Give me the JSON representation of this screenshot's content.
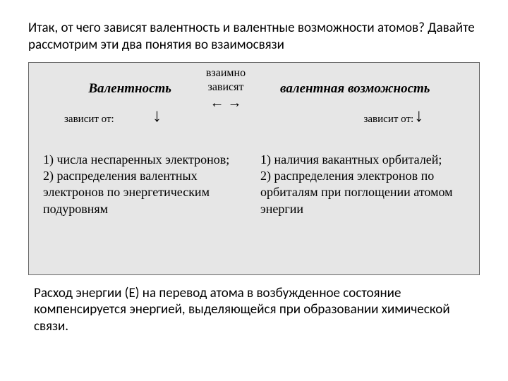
{
  "intro": "Итак, от чего зависят валентность и валентные возможности атомов? Давайте рассмотрим эти два понятия во взаимосвязи",
  "diagram": {
    "background_color": "#e6e6e6",
    "border_color": "#666666",
    "left_concept": "Валентность",
    "right_concept": "валентная возможность",
    "center_label_line1": "взаимно",
    "center_label_line2": "зависят",
    "center_arrows": "←        →",
    "depend_left": "зависит от:",
    "depend_right": "зависит от:",
    "down_arrow": "↓",
    "left_list_1": "1) числа неспаренных электронов;",
    "left_list_2": "2) распределения валентных электронов по энергетическим подуровням",
    "right_list_1": "1) наличия вакантных орбиталей;",
    "right_list_2": "2) распределения электронов по орбиталям при поглощении атомом энергии"
  },
  "outro": "Расход энергии (Е) на перевод атома в возбужденное состояние компенсируется энергией, выделяющейся при образовании химической связи."
}
